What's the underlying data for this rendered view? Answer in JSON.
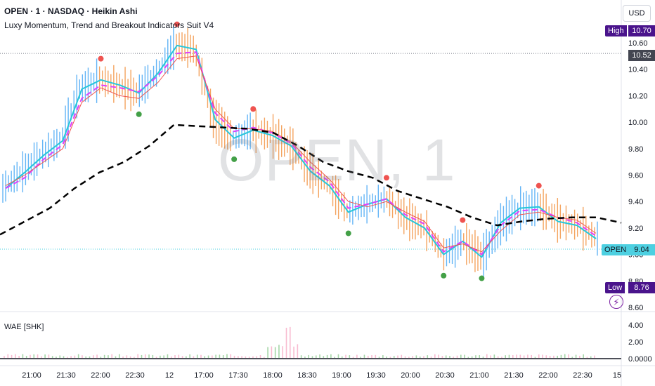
{
  "header": {
    "symbol_line": "OPEN · 1 · NASDAQ · Heikin Ashi",
    "indicator": "Luxy Momentum, Trend and Breakout Indicators Suit V4",
    "currency": "USD",
    "watermark": "OPEN, 1"
  },
  "lower_pane": {
    "label": "WAE [SHK]"
  },
  "price_tags": {
    "high_label": "High",
    "high_value": "10.70",
    "current_value": "10.52",
    "symbol_label": "OPEN",
    "last_value": "9.04",
    "low_label": "Low",
    "low_value": "8.76"
  },
  "colors": {
    "up": "#26a69a",
    "down": "#ef5350",
    "candle_up": "#64b5f6",
    "candle_down": "#f4a460",
    "cyan_line": "#26c6da",
    "magenta_line": "#e040fb",
    "label_purple": "#4a148c",
    "open_teal": "#4dd0e1"
  },
  "chart_data": [
    {
      "type": "line",
      "title": "OPEN · 1 · NASDAQ · Heikin Ashi",
      "candle_style": "heikin-ashi",
      "x_ticks": [
        "21:00",
        "21:30",
        "22:00",
        "22:30",
        "12",
        "17:00",
        "17:30",
        "18:00",
        "18:30",
        "19:00",
        "19:30",
        "20:00",
        "20:30",
        "21:00",
        "21:30",
        "22:00",
        "22:30",
        "15"
      ],
      "y_ticks": [
        "8.60",
        "8.80",
        "9.00",
        "9.20",
        "9.40",
        "9.60",
        "9.80",
        "10.00",
        "10.20",
        "10.40",
        "10.60"
      ],
      "ylim": [
        8.56,
        10.84
      ],
      "grid": false,
      "series": [
        {
          "values": [
            9.5,
            9.62,
            9.75,
            9.86,
            10.25,
            10.32,
            10.28,
            10.22,
            10.37,
            10.58,
            10.55,
            10.02,
            9.88,
            9.94,
            9.9,
            9.82,
            9.63,
            9.52,
            9.32,
            9.38,
            9.42,
            9.28,
            9.2,
            9.0,
            9.1,
            8.98,
            9.24,
            9.35,
            9.36,
            9.25,
            9.22,
            9.12
          ]
        },
        {
          "values": [
            9.5,
            9.58,
            9.72,
            9.83,
            10.18,
            10.28,
            10.26,
            10.23,
            10.35,
            10.52,
            10.53,
            10.07,
            9.93,
            9.96,
            9.92,
            9.84,
            9.66,
            9.55,
            9.35,
            9.38,
            9.42,
            9.3,
            9.23,
            9.02,
            9.1,
            9.0,
            9.22,
            9.33,
            9.34,
            9.28,
            9.24,
            9.14
          ]
        },
        {
          "values": [
            9.52,
            9.6,
            9.7,
            9.8,
            10.15,
            10.26,
            10.2,
            10.18,
            10.3,
            10.48,
            10.5,
            10.1,
            9.95,
            9.95,
            9.93,
            9.85,
            9.7,
            9.57,
            9.4,
            9.36,
            9.4,
            9.32,
            9.25,
            9.05,
            9.08,
            9.02,
            9.18,
            9.3,
            9.32,
            9.28,
            9.26,
            9.16
          ]
        },
        {
          "values": [
            9.15,
            9.25,
            9.35,
            9.5,
            9.62,
            9.7,
            9.82,
            9.98,
            9.97,
            9.96,
            9.95,
            9.92,
            9.82,
            9.7,
            9.63,
            9.58,
            9.48,
            9.42,
            9.36,
            9.28,
            9.22,
            9.25,
            9.27,
            9.28,
            9.28,
            9.24
          ]
        }
      ]
    },
    {
      "type": "bar",
      "title": "WAE [SHK]",
      "y_ticks": [
        "4.00",
        "2.00",
        "0.0000"
      ],
      "ylim": [
        0,
        5
      ]
    }
  ]
}
